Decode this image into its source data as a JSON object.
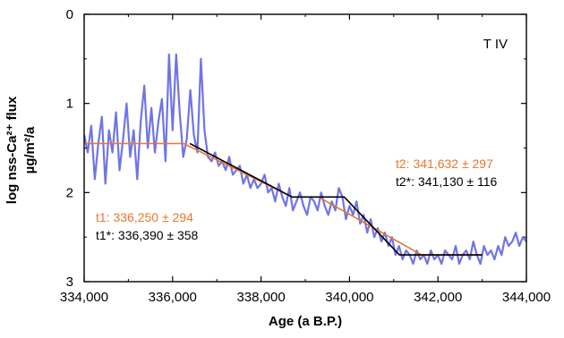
{
  "chart_data": {
    "type": "line",
    "panel_label": "T IV",
    "xlabel": "Age (a B.P.)",
    "ylabel_line1": "log nss-Ca²⁺ flux",
    "ylabel_line2": "µg/m²/a",
    "xlim": [
      334000,
      344000
    ],
    "ylim": [
      0,
      3
    ],
    "y_inverted": true,
    "grid": false,
    "xticks": [
      334000,
      336000,
      338000,
      340000,
      342000,
      344000
    ],
    "xtick_labels": [
      "334,000",
      "336,000",
      "338,000",
      "340,000",
      "342,000",
      "344,000"
    ],
    "yticks": [
      0,
      1,
      2,
      3
    ],
    "ytick_labels": [
      "0",
      "1",
      "2",
      "3"
    ],
    "colors": {
      "record": "#6f74e8",
      "ramp_fit": "#e8772c",
      "ramp_fit_star": "#000000",
      "t1": "#e8772c",
      "t2": "#e8772c",
      "t1_star": "#000000",
      "t2_star": "#000000"
    },
    "series": [
      {
        "id": "record",
        "x": [
          334000,
          334080,
          334160,
          334240,
          334320,
          334400,
          334480,
          334560,
          334640,
          334720,
          334800,
          334880,
          334960,
          335040,
          335120,
          335200,
          335280,
          335360,
          335440,
          335520,
          335600,
          335680,
          335760,
          335840,
          335920,
          336000,
          336080,
          336160,
          336240,
          336320,
          336400,
          336480,
          336560,
          336640,
          336720,
          336800,
          336880,
          336960,
          337040,
          337120,
          337200,
          337280,
          337360,
          337440,
          337520,
          337600,
          337680,
          337760,
          337840,
          337920,
          338000,
          338080,
          338160,
          338240,
          338320,
          338400,
          338480,
          338560,
          338640,
          338720,
          338800,
          338880,
          338960,
          339040,
          339120,
          339200,
          339280,
          339360,
          339440,
          339520,
          339600,
          339680,
          339760,
          339840,
          339920,
          340000,
          340080,
          340160,
          340240,
          340320,
          340400,
          340480,
          340560,
          340640,
          340720,
          340800,
          340880,
          340960,
          341040,
          341120,
          341200,
          341280,
          341360,
          341440,
          341520,
          341600,
          341680,
          341760,
          341840,
          341920,
          342000,
          342080,
          342160,
          342240,
          342320,
          342400,
          342480,
          342560,
          342640,
          342720,
          342800,
          342880,
          342960,
          343040,
          343120,
          343200,
          343280,
          343360,
          343440,
          343520,
          343600,
          343680,
          343760,
          343840,
          343920,
          344000
        ],
        "y": [
          1.35,
          1.55,
          1.25,
          1.85,
          1.45,
          1.15,
          1.9,
          1.3,
          1.55,
          1.1,
          1.75,
          1.4,
          1.0,
          1.6,
          1.3,
          1.85,
          1.2,
          0.8,
          1.5,
          1.05,
          1.55,
          1.2,
          0.95,
          1.65,
          0.45,
          1.3,
          0.45,
          1.1,
          1.6,
          1.4,
          0.85,
          1.35,
          1.55,
          0.5,
          1.3,
          1.6,
          1.65,
          1.55,
          1.7,
          1.65,
          1.75,
          1.6,
          1.8,
          1.75,
          1.7,
          1.9,
          1.8,
          1.95,
          1.85,
          1.95,
          1.9,
          1.8,
          2.0,
          1.95,
          2.1,
          1.9,
          2.05,
          2.15,
          1.95,
          2.2,
          2.1,
          2.0,
          2.15,
          2.25,
          2.05,
          2.1,
          2.2,
          2.0,
          2.15,
          2.25,
          2.1,
          2.2,
          1.95,
          2.05,
          2.3,
          2.15,
          2.25,
          2.1,
          2.35,
          2.25,
          2.45,
          2.3,
          2.5,
          2.4,
          2.55,
          2.45,
          2.6,
          2.5,
          2.7,
          2.6,
          2.75,
          2.65,
          2.7,
          2.8,
          2.65,
          2.75,
          2.7,
          2.8,
          2.65,
          2.75,
          2.7,
          2.8,
          2.65,
          2.7,
          2.75,
          2.6,
          2.8,
          2.7,
          2.65,
          2.75,
          2.55,
          2.7,
          2.8,
          2.6,
          2.7,
          2.65,
          2.75,
          2.6,
          2.7,
          2.5,
          2.6,
          2.55,
          2.45,
          2.6,
          2.5,
          2.55
        ]
      },
      {
        "id": "ramp_fit",
        "x": [
          334000,
          336250,
          338700,
          339300,
          341632,
          343000
        ],
        "y": [
          1.45,
          1.45,
          2.05,
          2.05,
          2.7,
          2.7
        ]
      },
      {
        "id": "ramp_fit_star",
        "x": [
          336390,
          338700,
          339880,
          341130,
          343000
        ],
        "y": [
          1.45,
          2.05,
          2.05,
          2.7,
          2.7
        ]
      }
    ],
    "annotations": [
      {
        "id": "t1",
        "text": "t1: 336,250 ± 294"
      },
      {
        "id": "t1_star",
        "text": "t1*: 336,390 ± 358"
      },
      {
        "id": "t2",
        "text": "t2: 341,632 ± 297"
      },
      {
        "id": "t2_star",
        "text": "t2*: 341,130 ± 116"
      }
    ]
  }
}
